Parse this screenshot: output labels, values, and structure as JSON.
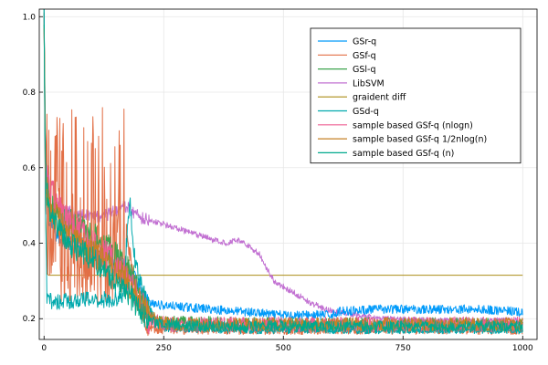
{
  "chart_data": {
    "type": "line",
    "title": "",
    "xlabel": "",
    "ylabel": "",
    "xlim": [
      -10,
      1030
    ],
    "ylim": [
      0.145,
      1.02
    ],
    "x_ticks": [
      0,
      250,
      500,
      750,
      1000
    ],
    "x_tick_labels": [
      "0",
      "250",
      "500",
      "750",
      "1000"
    ],
    "y_ticks": [
      0.2,
      0.4,
      0.6,
      0.8,
      1.0
    ],
    "y_tick_labels": [
      "0.2",
      "0.4",
      "0.6",
      "0.8",
      "1.0"
    ],
    "grid": true,
    "legend_position": "top-right",
    "series": [
      {
        "name": "GSr-q",
        "color": "#009AFA",
        "anchors": [
          [
            0,
            1.0
          ],
          [
            3,
            0.6
          ],
          [
            10,
            0.45
          ],
          [
            30,
            0.42
          ],
          [
            60,
            0.4
          ],
          [
            100,
            0.38
          ],
          [
            140,
            0.36
          ],
          [
            170,
            0.34
          ],
          [
            190,
            0.3
          ],
          [
            205,
            0.26
          ],
          [
            220,
            0.24
          ],
          [
            250,
            0.235
          ],
          [
            300,
            0.23
          ],
          [
            350,
            0.225
          ],
          [
            400,
            0.22
          ],
          [
            450,
            0.215
          ],
          [
            480,
            0.21
          ],
          [
            600,
            0.21
          ],
          [
            620,
            0.22
          ],
          [
            700,
            0.225
          ],
          [
            800,
            0.225
          ],
          [
            900,
            0.225
          ],
          [
            975,
            0.22
          ],
          [
            1000,
            0.215
          ]
        ],
        "noise": 0.012,
        "spikes": 0.0
      },
      {
        "name": "GSf-q",
        "color": "#E26F46",
        "anchors": [
          [
            0,
            1.0
          ],
          [
            3,
            0.55
          ],
          [
            10,
            0.5
          ],
          [
            50,
            0.5
          ],
          [
            100,
            0.5
          ],
          [
            150,
            0.5
          ],
          [
            170,
            0.45
          ],
          [
            185,
            0.32
          ],
          [
            200,
            0.25
          ],
          [
            210,
            0.2
          ],
          [
            215,
            0.175
          ],
          [
            250,
            0.17
          ],
          [
            400,
            0.17
          ],
          [
            600,
            0.17
          ],
          [
            800,
            0.17
          ],
          [
            1000,
            0.17
          ]
        ],
        "noise": 0.012,
        "spikes": 1.0,
        "spike_end": 172,
        "spike_lo": 0.24,
        "spike_hi": 0.76
      },
      {
        "name": "GSl-q",
        "color": "#3DA44E",
        "anchors": [
          [
            0,
            1.0
          ],
          [
            3,
            0.55
          ],
          [
            10,
            0.5
          ],
          [
            40,
            0.46
          ],
          [
            80,
            0.44
          ],
          [
            120,
            0.4
          ],
          [
            160,
            0.36
          ],
          [
            190,
            0.3
          ],
          [
            210,
            0.24
          ],
          [
            230,
            0.2
          ],
          [
            250,
            0.19
          ],
          [
            400,
            0.187
          ],
          [
            600,
            0.185
          ],
          [
            800,
            0.185
          ],
          [
            1000,
            0.184
          ]
        ],
        "noise": 0.018,
        "spikes": 0.0
      },
      {
        "name": "LibSVM",
        "color": "#C271D2",
        "anchors": [
          [
            0,
            1.0
          ],
          [
            3,
            0.55
          ],
          [
            10,
            0.5
          ],
          [
            60,
            0.48
          ],
          [
            120,
            0.47
          ],
          [
            170,
            0.5
          ],
          [
            200,
            0.47
          ],
          [
            250,
            0.45
          ],
          [
            300,
            0.43
          ],
          [
            350,
            0.41
          ],
          [
            380,
            0.4
          ],
          [
            400,
            0.41
          ],
          [
            420,
            0.4
          ],
          [
            450,
            0.37
          ],
          [
            480,
            0.3
          ],
          [
            520,
            0.27
          ],
          [
            560,
            0.24
          ],
          [
            600,
            0.22
          ],
          [
            650,
            0.21
          ],
          [
            700,
            0.2
          ],
          [
            800,
            0.195
          ],
          [
            900,
            0.195
          ],
          [
            1000,
            0.195
          ]
        ],
        "noise": 0.008,
        "spikes": 0.0
      },
      {
        "name": "graident diff",
        "color": "#AC8D18",
        "anchors": [
          [
            0,
            1.0
          ],
          [
            3,
            0.5
          ],
          [
            6,
            0.32
          ],
          [
            10,
            0.315
          ],
          [
            1000,
            0.315
          ]
        ],
        "noise": 0.0,
        "spikes": 0.0
      },
      {
        "name": "GSd-q",
        "color": "#00A9AD",
        "anchors": [
          [
            0,
            1.0
          ],
          [
            3,
            0.5
          ],
          [
            6,
            0.25
          ],
          [
            30,
            0.245
          ],
          [
            80,
            0.25
          ],
          [
            130,
            0.25
          ],
          [
            165,
            0.255
          ],
          [
            175,
            0.45
          ],
          [
            180,
            0.5
          ],
          [
            190,
            0.35
          ],
          [
            205,
            0.28
          ],
          [
            230,
            0.2
          ],
          [
            250,
            0.175
          ],
          [
            400,
            0.17
          ],
          [
            600,
            0.17
          ],
          [
            800,
            0.17
          ],
          [
            1000,
            0.17
          ]
        ],
        "noise": 0.01,
        "spikes": 0.0
      },
      {
        "name": "sample based GSf-q (nlogn)",
        "color": "#ED5D92",
        "anchors": [
          [
            0,
            1.0
          ],
          [
            3,
            0.6
          ],
          [
            10,
            0.55
          ],
          [
            50,
            0.45
          ],
          [
            100,
            0.4
          ],
          [
            150,
            0.35
          ],
          [
            180,
            0.3
          ],
          [
            200,
            0.24
          ],
          [
            220,
            0.2
          ],
          [
            260,
            0.185
          ],
          [
            400,
            0.185
          ],
          [
            700,
            0.185
          ],
          [
            1000,
            0.185
          ]
        ],
        "noise": 0.02,
        "spikes": 0.0
      },
      {
        "name": "sample based GSf-q 1/2nlog(n)",
        "color": "#C68125",
        "anchors": [
          [
            0,
            1.0
          ],
          [
            3,
            0.6
          ],
          [
            10,
            0.5
          ],
          [
            50,
            0.42
          ],
          [
            100,
            0.38
          ],
          [
            150,
            0.33
          ],
          [
            180,
            0.29
          ],
          [
            210,
            0.22
          ],
          [
            240,
            0.19
          ],
          [
            300,
            0.185
          ],
          [
            600,
            0.185
          ],
          [
            1000,
            0.185
          ]
        ],
        "noise": 0.018,
        "spikes": 0.0
      },
      {
        "name": "sample based GSf-q (n)",
        "color": "#00A98D",
        "anchors": [
          [
            0,
            1.0
          ],
          [
            3,
            0.6
          ],
          [
            10,
            0.48
          ],
          [
            50,
            0.4
          ],
          [
            100,
            0.36
          ],
          [
            150,
            0.3
          ],
          [
            175,
            0.27
          ],
          [
            200,
            0.22
          ],
          [
            230,
            0.19
          ],
          [
            300,
            0.18
          ],
          [
            600,
            0.18
          ],
          [
            1000,
            0.18
          ]
        ],
        "noise": 0.015,
        "spikes": 0.0
      }
    ]
  }
}
